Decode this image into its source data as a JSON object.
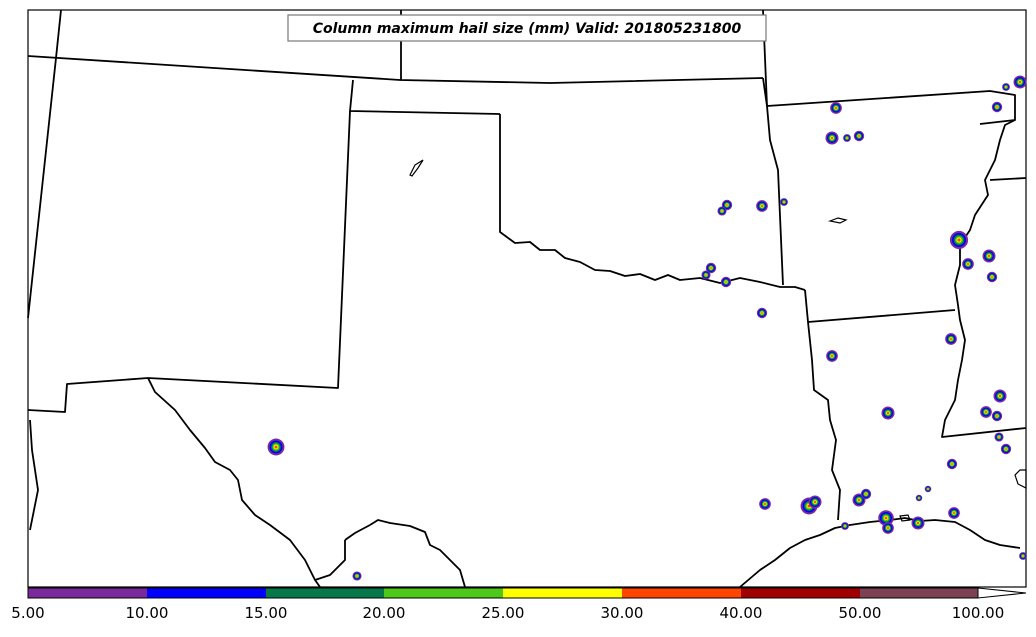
{
  "map": {
    "title": "Column maximum hail size (mm) Valid: 201805231800",
    "colorbar": {
      "tick_labels": [
        "5.00",
        "10.00",
        "15.00",
        "20.00",
        "25.00",
        "30.00",
        "40.00",
        "50.00",
        "100.00"
      ],
      "colors": [
        "#7b2a9c",
        "#0000ff",
        "#08784a",
        "#4ec81a",
        "#ffff00",
        "#ff4500",
        "#a00000",
        "#7c4254"
      ]
    },
    "hail_colors": {
      "outer": "#7b2a9c",
      "ring": "#0000ff",
      "mid": "#08784a",
      "inner": "#4ec81a",
      "yellow": "#ffff00",
      "core": "#ff4500"
    }
  }
}
